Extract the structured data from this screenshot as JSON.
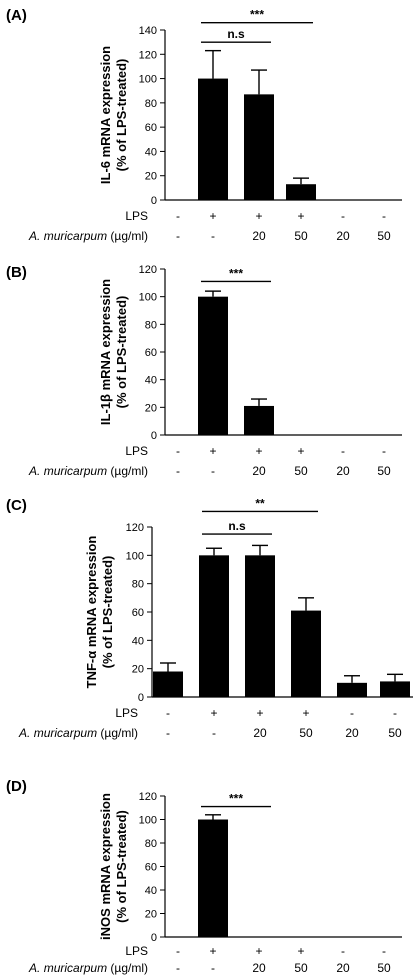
{
  "row_labels": {
    "lps": "LPS",
    "extract_italic": "A. muricarpum",
    "extract_unit": " (µg/ml)"
  },
  "chart_data": [
    {
      "type": "bar",
      "panel": "(A)",
      "ylabel_line1": "IL-6 mRNA expression",
      "ylabel_line2": "(% of LPS-treated)",
      "ylim": [
        0,
        140
      ],
      "yticks": [
        0,
        20,
        40,
        60,
        80,
        100,
        120,
        140
      ],
      "lps": [
        "-",
        "+",
        "+",
        "+",
        "-",
        "-"
      ],
      "dose": [
        "-",
        "-",
        "20",
        "50",
        "20",
        "50"
      ],
      "values": [
        0,
        100,
        87,
        13,
        0,
        0
      ],
      "errors": [
        0,
        23,
        20,
        5,
        0,
        0
      ],
      "significance": [
        {
          "label": "n.s",
          "from": 1,
          "to": 2,
          "y": 130
        },
        {
          "label": "***",
          "from": 1,
          "to": 3,
          "y": 146
        }
      ]
    },
    {
      "type": "bar",
      "panel": "(B)",
      "ylabel_line1": "IL-1β mRNA expression",
      "ylabel_line2": "(% of LPS-treated)",
      "ylim": [
        0,
        120
      ],
      "yticks": [
        0,
        20,
        40,
        60,
        80,
        100,
        120
      ],
      "lps": [
        "-",
        "+",
        "+",
        "+",
        "-",
        "-"
      ],
      "dose": [
        "-",
        "-",
        "20",
        "50",
        "20",
        "50"
      ],
      "values": [
        0,
        100,
        21,
        0,
        0,
        0
      ],
      "errors": [
        0,
        4,
        5,
        0,
        0,
        0
      ],
      "significance": [
        {
          "label": "***",
          "from": 1,
          "to": 2,
          "y": 111
        }
      ]
    },
    {
      "type": "bar",
      "panel": "(C)",
      "ylabel_line1": "TNF-α mRNA expression",
      "ylabel_line2": "(% of LPS-treated)",
      "ylim": [
        0,
        120
      ],
      "yticks": [
        0,
        20,
        40,
        60,
        80,
        100,
        120
      ],
      "lps": [
        "-",
        "+",
        "+",
        "+",
        "-",
        "-"
      ],
      "dose": [
        "-",
        "-",
        "20",
        "50",
        "20",
        "50"
      ],
      "values": [
        18,
        100,
        100,
        61,
        10,
        11
      ],
      "errors": [
        6,
        5,
        7,
        9,
        5,
        5
      ],
      "significance": [
        {
          "label": "n.s",
          "from": 1,
          "to": 2,
          "y": 115
        },
        {
          "label": "**",
          "from": 1,
          "to": 3,
          "y": 131
        }
      ]
    },
    {
      "type": "bar",
      "panel": "(D)",
      "ylabel_line1": "iNOS mRNA expression",
      "ylabel_line2": "(% of LPS-treated)",
      "ylim": [
        0,
        120
      ],
      "yticks": [
        0,
        20,
        40,
        60,
        80,
        100,
        120
      ],
      "lps": [
        "-",
        "+",
        "+",
        "+",
        "-",
        "-"
      ],
      "dose": [
        "-",
        "-",
        "20",
        "50",
        "20",
        "50"
      ],
      "values": [
        0,
        100,
        0,
        0,
        0,
        0
      ],
      "errors": [
        0,
        4,
        0,
        0,
        0,
        0
      ],
      "significance": [
        {
          "label": "***",
          "from": 1,
          "to": 2,
          "y": 111
        }
      ]
    }
  ]
}
